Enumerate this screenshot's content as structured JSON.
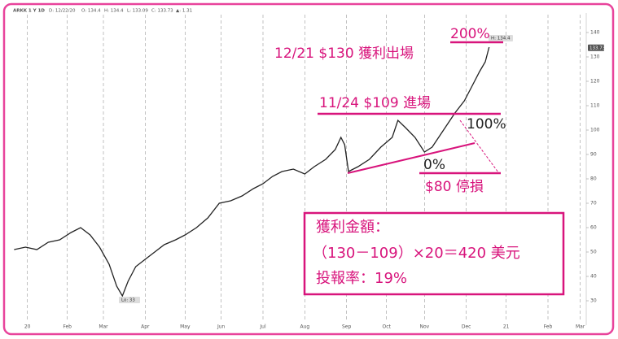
{
  "chart_data": {
    "type": "line",
    "header": [
      "ARKK 1 Y 1D",
      "D: 12/22/20",
      "O: 134.4",
      "H: 134.4",
      "L: 133.09",
      "C: 133.73",
      "▲: 1.31"
    ],
    "x": [
      0,
      6,
      12,
      18,
      24,
      30,
      35,
      40,
      45,
      50,
      54,
      57,
      60,
      64,
      69,
      74,
      79,
      85,
      90,
      96,
      102,
      108,
      114,
      120,
      126,
      131,
      136,
      141,
      147,
      153,
      158,
      164,
      169,
      172,
      174,
      176,
      181,
      187,
      193,
      199,
      202,
      206,
      211,
      216,
      220,
      226,
      232,
      237,
      241,
      245,
      248,
      250
    ],
    "values": [
      51,
      52,
      51,
      54,
      55,
      58,
      60,
      57,
      52,
      45,
      36,
      32,
      38,
      44,
      47,
      50,
      53,
      55,
      57,
      60,
      64,
      70,
      71,
      73,
      76,
      78,
      81,
      83,
      84,
      82,
      85,
      88,
      92,
      97,
      94,
      83,
      85,
      88,
      93,
      97,
      104,
      101,
      97,
      91,
      93,
      100,
      107,
      112,
      118,
      124,
      128,
      134
    ],
    "color": "#222222",
    "xlim": [
      -1,
      299
    ],
    "ylim": [
      20,
      148
    ],
    "yticks": [
      30,
      40,
      50,
      60,
      70,
      80,
      90,
      100,
      110,
      120,
      130,
      140
    ],
    "xticks": [
      {
        "value": 7,
        "label": "20"
      },
      {
        "value": 28,
        "label": "Feb"
      },
      {
        "value": 47,
        "label": "Mar"
      },
      {
        "value": 69,
        "label": "Apr"
      },
      {
        "value": 90,
        "label": "May"
      },
      {
        "value": 109,
        "label": "Jun"
      },
      {
        "value": 131,
        "label": "Jul"
      },
      {
        "value": 153,
        "label": "Aug"
      },
      {
        "value": 175,
        "label": "Sep"
      },
      {
        "value": 196,
        "label": "Oct"
      },
      {
        "value": 216,
        "label": "Nov"
      },
      {
        "value": 238,
        "label": "Dec"
      },
      {
        "value": 259,
        "label": "21"
      },
      {
        "value": 281,
        "label": "Feb"
      },
      {
        "value": 298,
        "label": "Mar"
      }
    ],
    "grid": true,
    "price_tag": 133.73,
    "high_badge": "H: 134.4",
    "low_badge": "Lo: 33",
    "annotations": [
      "200%",
      "12/21 $130 獲利出場",
      "11/24 $109 進場",
      "100%",
      "0%",
      "$80 停損"
    ],
    "summary": [
      "獲利金額：",
      "（130－109）×20＝420 美元",
      "投報率：19%"
    ]
  }
}
